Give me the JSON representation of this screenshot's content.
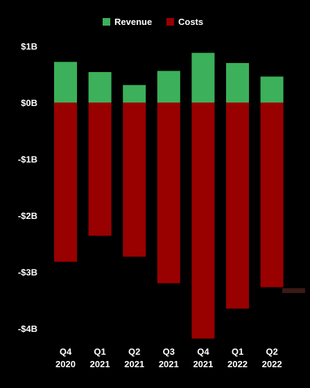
{
  "chart_data": {
    "type": "bar",
    "stacked": true,
    "categories": [
      [
        "Q4",
        "2020"
      ],
      [
        "Q1",
        "2021"
      ],
      [
        "Q2",
        "2021"
      ],
      [
        "Q3",
        "2021"
      ],
      [
        "Q4",
        "2021"
      ],
      [
        "Q1",
        "2022"
      ],
      [
        "Q2",
        "2022"
      ]
    ],
    "series": [
      {
        "name": "Revenue",
        "color": "#3cb05a",
        "values": [
          0.72,
          0.54,
          0.31,
          0.56,
          0.88,
          0.7,
          0.46
        ]
      },
      {
        "name": "Costs",
        "color": "#990000",
        "values": [
          -2.82,
          -2.36,
          -2.73,
          -3.2,
          -4.18,
          -3.65,
          -3.27
        ]
      }
    ],
    "y_ticks": [
      {
        "value": 1,
        "label": "$1B"
      },
      {
        "value": 0,
        "label": "$0B"
      },
      {
        "value": -1,
        "label": "-$1B"
      },
      {
        "value": -2,
        "label": "-$2B"
      },
      {
        "value": -3,
        "label": "-$3B"
      },
      {
        "value": -4,
        "label": "-$4B"
      }
    ],
    "ylim": [
      -4.2,
      1.0
    ],
    "legend_position": "top-center",
    "grid": false,
    "title": "",
    "xlabel": "",
    "ylabel": ""
  }
}
